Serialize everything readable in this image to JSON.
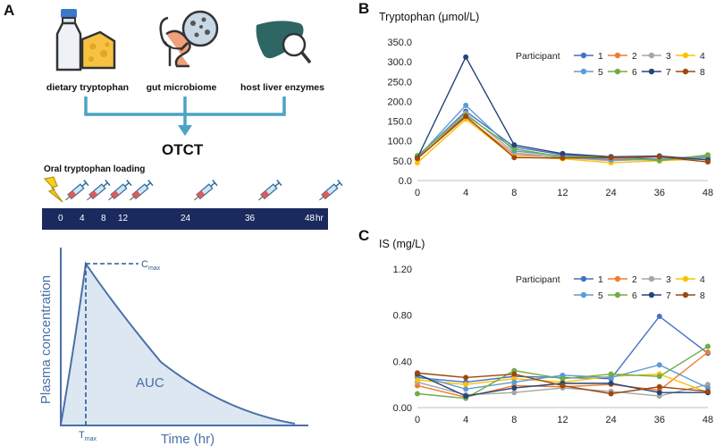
{
  "panels": {
    "a": "A",
    "b": "B",
    "c": "C"
  },
  "sources": {
    "diet": "dietary tryptophan",
    "microbiome": "gut microbiome",
    "liver": "host liver enzymes"
  },
  "otct_label": "OTCT",
  "loading_title": "Oral tryptophan loading",
  "timeline": {
    "times": [
      "0",
      "4",
      "8",
      "12",
      "24",
      "36",
      "48"
    ],
    "unit": "hr"
  },
  "pk_curve": {
    "ylabel": "Plasma concentration",
    "xlabel": "Time (hr)",
    "auc_label": "AUC",
    "cmax_main": "C",
    "cmax_sub": "max",
    "tmax_main": "T",
    "tmax_sub": "max"
  },
  "colors": {
    "navy": "#1a2a5e",
    "teal": "#4aa3c4",
    "curve": "#4a6fa8",
    "auc_fill": "#dce7f2"
  },
  "chart_data": [
    {
      "type": "line",
      "title": "Tryptophan (μmol/L)",
      "x": [
        0,
        4,
        8,
        12,
        24,
        36,
        48
      ],
      "xticks": [
        "0",
        "4",
        "8",
        "12",
        "24",
        "36",
        "48"
      ],
      "ylim": [
        0,
        350
      ],
      "yticks": [
        "0.0",
        "50.0",
        "100.0",
        "150.0",
        "200.0",
        "250.0",
        "300.0",
        "350.0"
      ],
      "ytick_values": [
        0,
        50,
        100,
        150,
        200,
        250,
        300,
        350
      ],
      "legend_title": "Participant",
      "series": [
        {
          "name": "1",
          "color": "#4472c4",
          "values": [
            60,
            175,
            85,
            65,
            58,
            55,
            60
          ]
        },
        {
          "name": "2",
          "color": "#ed7d31",
          "values": [
            55,
            160,
            65,
            60,
            55,
            52,
            55
          ]
        },
        {
          "name": "3",
          "color": "#a5a5a5",
          "values": [
            62,
            170,
            70,
            58,
            50,
            55,
            62
          ]
        },
        {
          "name": "4",
          "color": "#ffc000",
          "values": [
            45,
            155,
            60,
            55,
            45,
            50,
            55
          ]
        },
        {
          "name": "5",
          "color": "#5b9bd5",
          "values": [
            58,
            190,
            75,
            62,
            52,
            53,
            58
          ]
        },
        {
          "name": "6",
          "color": "#70ad47",
          "values": [
            63,
            165,
            80,
            60,
            60,
            50,
            65
          ]
        },
        {
          "name": "7",
          "color": "#264478",
          "values": [
            57,
            312,
            90,
            68,
            60,
            62,
            52
          ]
        },
        {
          "name": "8",
          "color": "#9e480e",
          "values": [
            56,
            162,
            58,
            57,
            58,
            60,
            47
          ]
        }
      ]
    },
    {
      "type": "line",
      "title": "IS (mg/L)",
      "x": [
        0,
        4,
        8,
        12,
        24,
        36,
        48
      ],
      "xticks": [
        "0",
        "4",
        "8",
        "12",
        "24",
        "36",
        "48"
      ],
      "ylim": [
        0,
        1.2
      ],
      "yticks": [
        "0.00",
        "0.40",
        "0.80",
        "1.20"
      ],
      "ytick_values": [
        0,
        0.4,
        0.8,
        1.2
      ],
      "legend_title": "Participant",
      "series": [
        {
          "name": "1",
          "color": "#4472c4",
          "values": [
            0.26,
            0.22,
            0.27,
            0.26,
            0.25,
            0.79,
            0.47
          ]
        },
        {
          "name": "2",
          "color": "#ed7d31",
          "values": [
            0.19,
            0.09,
            0.19,
            0.18,
            0.2,
            0.15,
            0.48
          ]
        },
        {
          "name": "3",
          "color": "#a5a5a5",
          "values": [
            0.22,
            0.11,
            0.13,
            0.17,
            0.14,
            0.1,
            0.2
          ]
        },
        {
          "name": "4",
          "color": "#ffc000",
          "values": [
            0.24,
            0.2,
            0.25,
            0.22,
            0.27,
            0.29,
            0.13
          ]
        },
        {
          "name": "5",
          "color": "#5b9bd5",
          "values": [
            0.28,
            0.16,
            0.22,
            0.28,
            0.26,
            0.37,
            0.17
          ]
        },
        {
          "name": "6",
          "color": "#70ad47",
          "values": [
            0.12,
            0.08,
            0.32,
            0.25,
            0.29,
            0.27,
            0.53
          ]
        },
        {
          "name": "7",
          "color": "#264478",
          "values": [
            0.29,
            0.1,
            0.17,
            0.21,
            0.21,
            0.13,
            0.13
          ]
        },
        {
          "name": "8",
          "color": "#9e480e",
          "values": [
            0.3,
            0.26,
            0.29,
            0.19,
            0.12,
            0.18,
            0.14
          ]
        }
      ]
    }
  ]
}
